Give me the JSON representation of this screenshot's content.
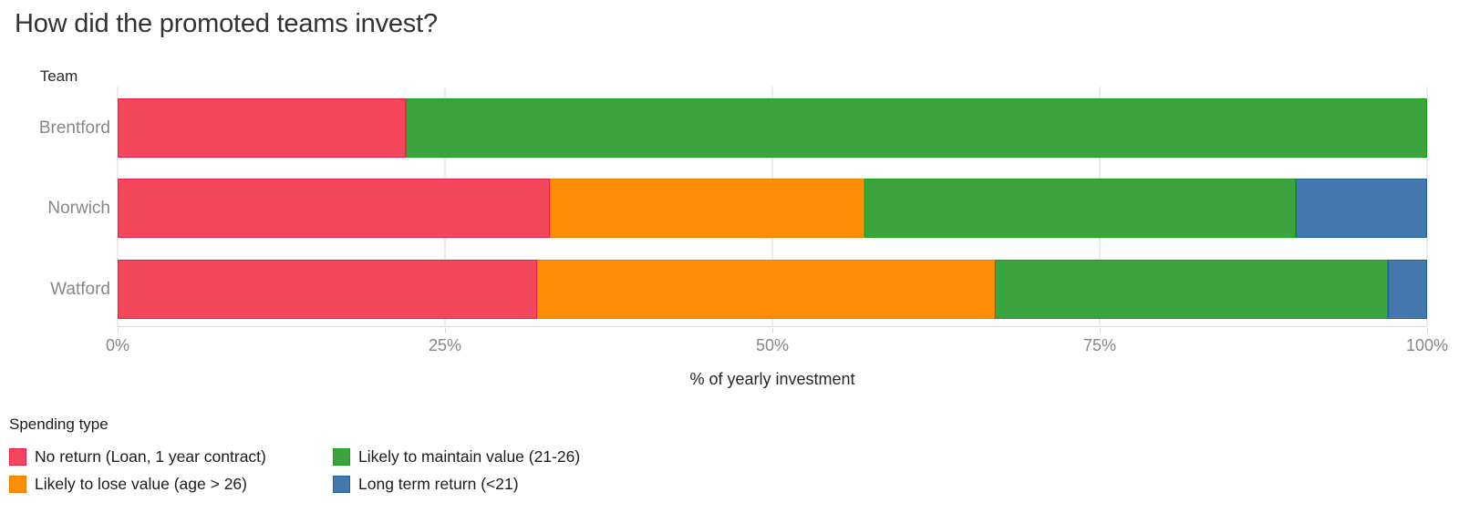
{
  "chart_data": {
    "type": "bar",
    "orientation": "horizontal",
    "stacked": true,
    "normalized_to_100": true,
    "title": "How did the promoted teams invest?",
    "ylabel": "Team",
    "xlabel": "% of yearly investment",
    "legend_title": "Spending type",
    "legend_position": "bottom-left",
    "grid": true,
    "xlim": [
      0,
      100
    ],
    "x_ticks": [
      "0%",
      "25%",
      "50%",
      "75%",
      "100%"
    ],
    "x_tick_values": [
      0,
      25,
      50,
      75,
      100
    ],
    "categories": [
      "Brentford",
      "Norwich",
      "Watford"
    ],
    "series": [
      {
        "name": "No return (Loan, 1 year contract)",
        "color": "#F4475B",
        "border_color": "#E91E4A",
        "values": [
          22,
          33,
          32
        ]
      },
      {
        "name": "Likely to lose value (age > 26)",
        "color": "#FF8D05",
        "border_color": "#F07D00",
        "values": [
          0,
          24,
          35
        ]
      },
      {
        "name": "Likely to maintain value (21-26)",
        "color": "#3BA43F",
        "border_color": "#18A018",
        "values": [
          78,
          33,
          30
        ]
      },
      {
        "name": "Long term return (<21)",
        "color": "#4377AD",
        "border_color": "#20629E",
        "values": [
          0,
          10,
          3
        ]
      }
    ]
  }
}
